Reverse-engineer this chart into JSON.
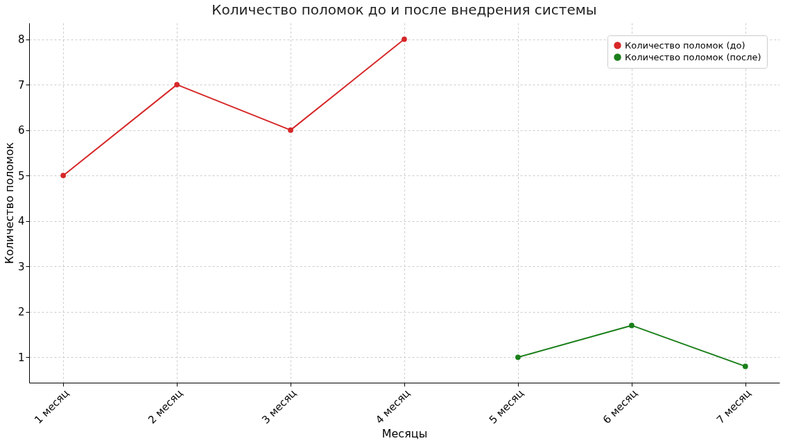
{
  "chart_data": {
    "type": "line",
    "title": "Количество поломок до и после внедрения системы",
    "xlabel": "Месяцы",
    "ylabel": "Количество поломок",
    "categories": [
      "1 месяц",
      "2 месяц",
      "3 месяц",
      "4 месяц",
      "5 месяц",
      "6 месяц",
      "7 месяц"
    ],
    "series": [
      {
        "name": "Количество поломок (до)",
        "color": "#d62728",
        "values": [
          5,
          7,
          6,
          8,
          null,
          null,
          null
        ]
      },
      {
        "name": "Количество поломок (после)",
        "color": "#1a7f1a",
        "values": [
          null,
          null,
          null,
          null,
          1,
          1.7,
          0.8
        ]
      }
    ],
    "ylim": [
      0.44,
      8.36
    ],
    "yticks": [
      1,
      2,
      3,
      4,
      5,
      6,
      7,
      8
    ],
    "grid": true,
    "legend": "top right",
    "marker": "circle",
    "line_style": "solid"
  }
}
